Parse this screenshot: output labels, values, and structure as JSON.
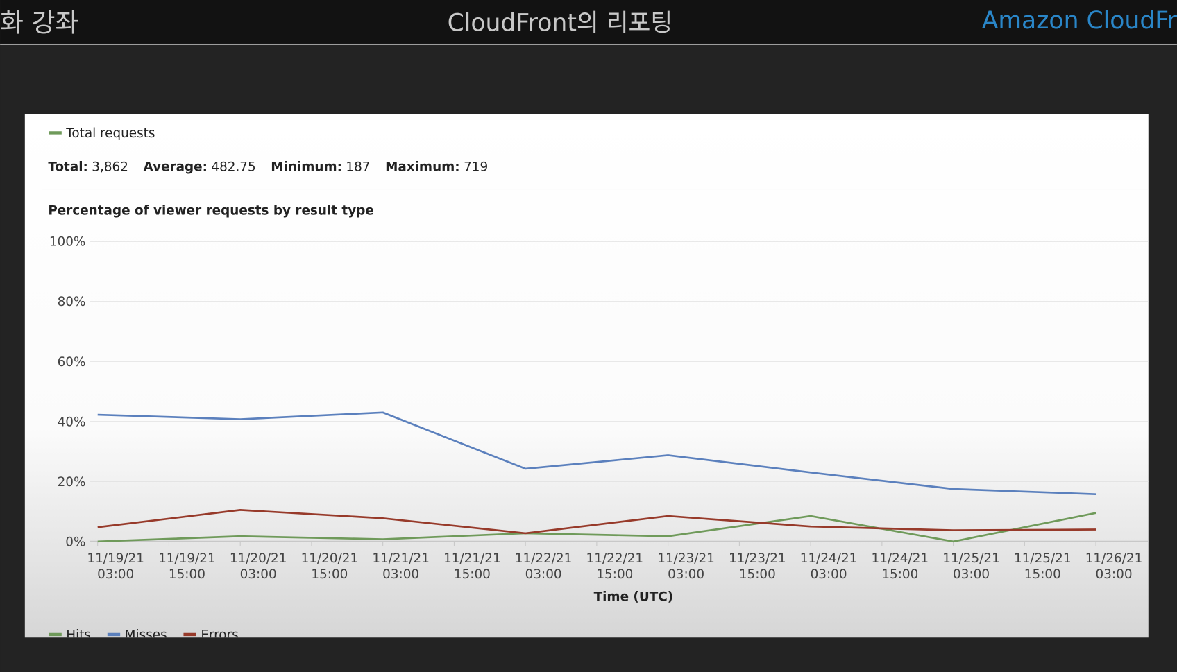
{
  "header": {
    "left": "화 강좌",
    "title": "CloudFront의 리포팅",
    "right": "Amazon CloudFront"
  },
  "summary": {
    "legend": "Total requests",
    "legend_color": "#6f9a5a",
    "stats": [
      {
        "label": "Total:",
        "value": "3,862"
      },
      {
        "label": "Average:",
        "value": "482.75"
      },
      {
        "label": "Minimum:",
        "value": "187"
      },
      {
        "label": "Maximum:",
        "value": "719"
      }
    ]
  },
  "chart_data": {
    "type": "line",
    "title": "Percentage of viewer requests by result type",
    "x_label": "Time (UTC)",
    "categories": [
      "11/19/21\n03:00",
      "11/20/21\n03:00",
      "11/21/21\n03:00",
      "11/22/21\n03:00",
      "11/23/21\n03:00",
      "11/24/21\n03:00",
      "11/25/21\n03:00",
      "11/26/21\n03:00"
    ],
    "intermediate_categories": [
      "11/19/21\n15:00",
      "11/20/21\n15:00",
      "11/21/21\n15:00",
      "11/22/21\n15:00",
      "11/23/21\n15:00",
      "11/24/21\n15:00",
      "11/25/21\n15:00"
    ],
    "series": [
      {
        "name": "Hits",
        "color": "#6f9a5a",
        "values": [
          0,
          1.75,
          0.75,
          2.75,
          1.75,
          8.5,
          0,
          9.5
        ]
      },
      {
        "name": "Misses",
        "color": "#5b80bd",
        "values": [
          42.25,
          40.75,
          43,
          24.25,
          28.75,
          23,
          17.5,
          15.75
        ]
      },
      {
        "name": "Errors",
        "color": "#973a2a",
        "values": [
          4.75,
          10.5,
          7.75,
          2.75,
          8.5,
          5,
          3.75,
          4
        ]
      }
    ],
    "ylim": [
      0,
      100
    ],
    "yticks": [
      {
        "value": 0,
        "label": "0%"
      },
      {
        "value": 20,
        "label": "20%"
      },
      {
        "value": 40,
        "label": "40%"
      },
      {
        "value": 60,
        "label": "60%"
      },
      {
        "value": 80,
        "label": "80%"
      },
      {
        "value": 100,
        "label": "100%"
      }
    ],
    "grid": true,
    "legend": "bottom-left"
  }
}
